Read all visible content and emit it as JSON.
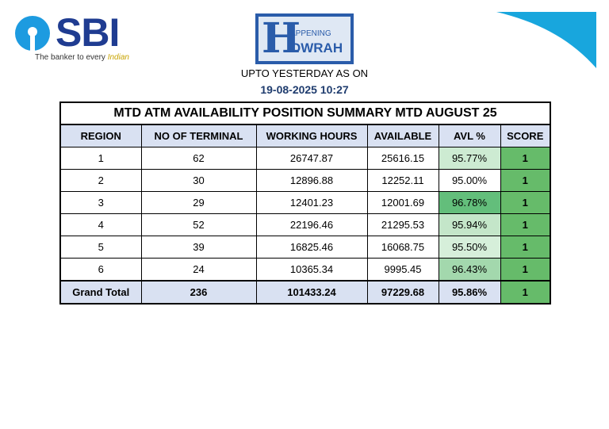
{
  "header": {
    "bank_name": "SBI",
    "tagline": "The banker to every ",
    "tagline_highlight": "Indian",
    "logo_letter": "H",
    "logo_top": "APPENING",
    "logo_bottom": "OWRAH",
    "subtitle": "UPTO YESTERDAY AS ON",
    "timestamp": "19-08-2025 10:27"
  },
  "table": {
    "title": "MTD ATM AVAILABILITY POSITION SUMMARY MTD AUGUST 25",
    "columns": [
      "REGION",
      "NO OF TERMINAL",
      "WORKING HOURS",
      "AVAILABLE",
      "AVL %",
      "SCORE"
    ],
    "rows": [
      [
        "1",
        "62",
        "26747.87",
        "25616.15",
        "95.77%",
        "1"
      ],
      [
        "2",
        "30",
        "12896.88",
        "12252.11",
        "95.00%",
        "1"
      ],
      [
        "3",
        "29",
        "12401.23",
        "12001.69",
        "96.78%",
        "1"
      ],
      [
        "4",
        "52",
        "22196.46",
        "21295.53",
        "95.94%",
        "1"
      ],
      [
        "5",
        "39",
        "16825.46",
        "16068.75",
        "95.50%",
        "1"
      ],
      [
        "6",
        "24",
        "10365.34",
        "9995.45",
        "96.43%",
        "1"
      ]
    ],
    "total": [
      "Grand Total",
      "236",
      "101433.24",
      "97229.68",
      "95.86%",
      "1"
    ]
  }
}
